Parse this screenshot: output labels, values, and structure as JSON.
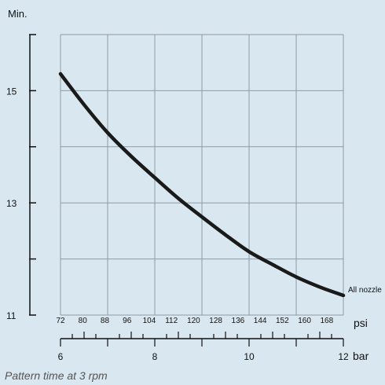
{
  "caption": "Pattern time at 3 rpm",
  "colors": {
    "background": "#d9e7f1",
    "grid": "#8f9aa3",
    "curve": "#1a1a1a",
    "axis": "#111111"
  },
  "chart_data": {
    "type": "line",
    "title": "",
    "ylabel": "Min.",
    "xlabel_psi": "psi",
    "xlabel_bar": "bar",
    "ylim": [
      11,
      16
    ],
    "y_ticks": [
      11,
      12,
      13,
      14,
      15,
      16
    ],
    "y_tick_labels": [
      "11",
      "",
      "13",
      "",
      "15",
      ""
    ],
    "psi_ticks": [
      "72",
      "80",
      "88",
      "96",
      "104",
      "112",
      "120",
      "128",
      "136",
      "144",
      "152",
      "160",
      "168"
    ],
    "psi_range": [
      72,
      174
    ],
    "bar_ticks": [
      "6",
      "8",
      "10",
      "12"
    ],
    "bar_range": [
      6,
      12
    ],
    "grid": true,
    "series": [
      {
        "name": "All nozzle",
        "x_bar": [
          6.0,
          6.5,
          7.0,
          7.5,
          8.0,
          8.5,
          9.0,
          9.5,
          10.0,
          10.5,
          11.0,
          11.5,
          12.0
        ],
        "y_min": [
          15.3,
          14.75,
          14.25,
          13.83,
          13.45,
          13.08,
          12.75,
          12.43,
          12.13,
          11.9,
          11.68,
          11.5,
          11.35
        ]
      }
    ]
  }
}
